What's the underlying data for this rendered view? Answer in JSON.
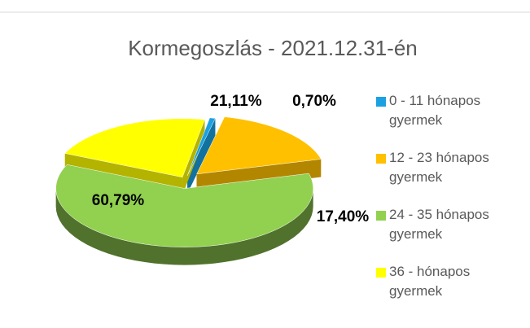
{
  "chart_data": {
    "type": "pie",
    "title": "Kormegoszlás  - 2021.12.31-én",
    "categories": [
      "0 - 11 hónapos gyermek",
      "12 - 23 hónapos gyermek",
      "24 - 35 hónapos gyermek",
      "36 - hónapos gyermek"
    ],
    "values": [
      0.7,
      17.4,
      60.79,
      21.11
    ],
    "value_labels": [
      "0,70%",
      "17,40%",
      "60,79%",
      "21,11%"
    ],
    "colors": [
      "#1ba1e2",
      "#ffc000",
      "#92d050",
      "#ffff00"
    ],
    "legend": "right"
  }
}
